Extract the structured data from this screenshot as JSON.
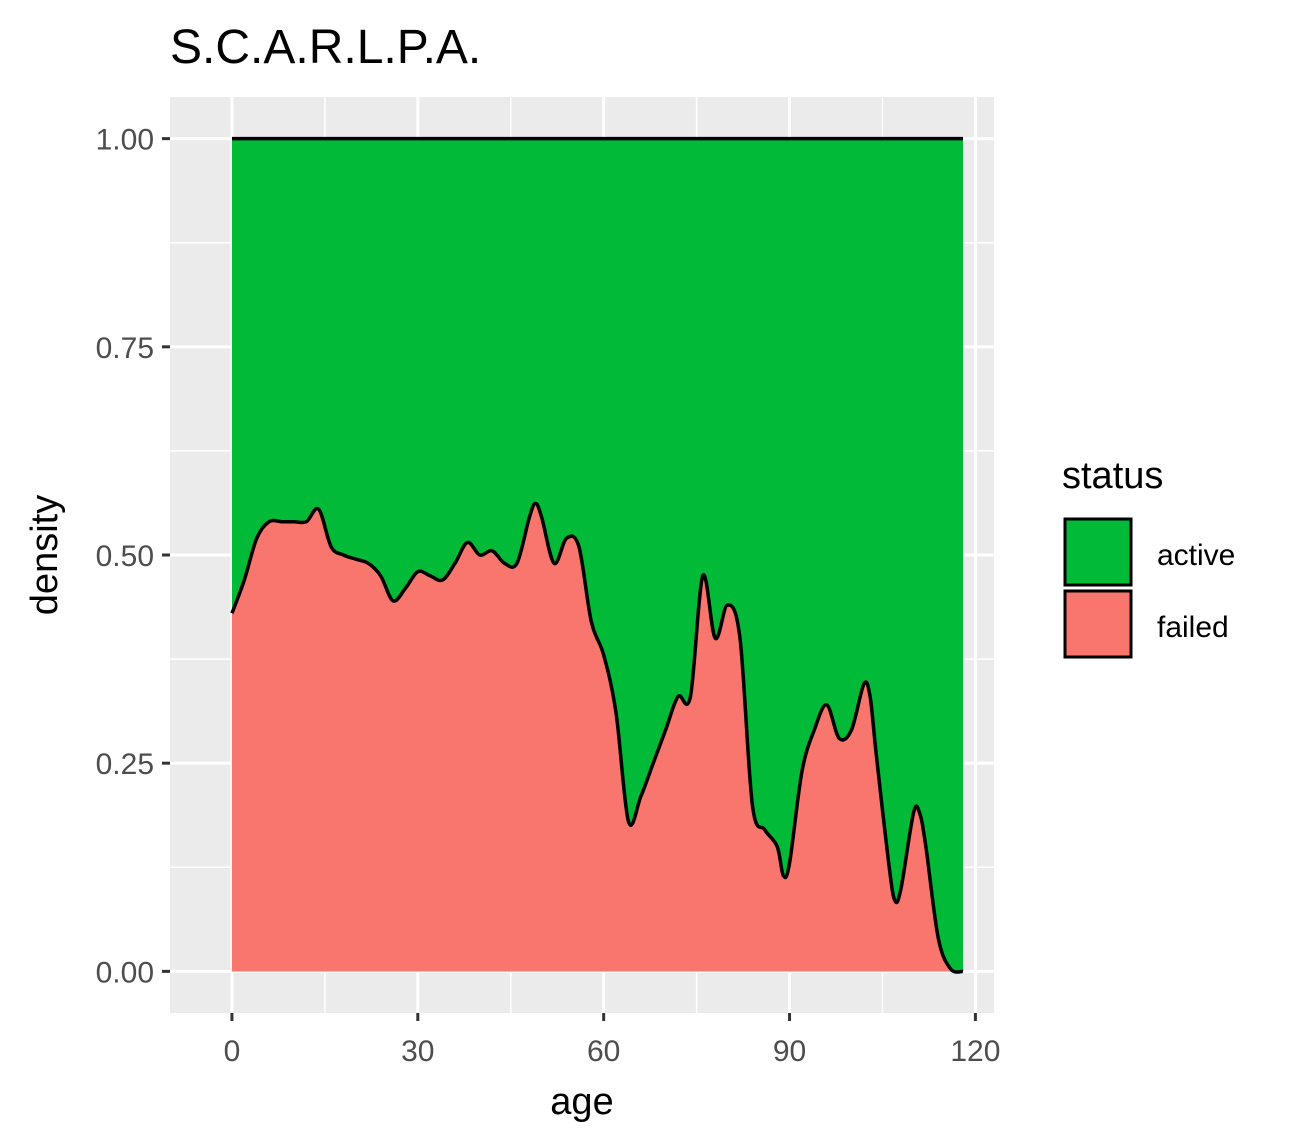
{
  "chart_data": {
    "type": "area",
    "subtype": "stacked density (position fill)",
    "title": "S.C.A.R.L.P.A.",
    "xlabel": "age",
    "ylabel": "density",
    "xlim": [
      -10,
      123
    ],
    "ylim": [
      -0.05,
      1.05
    ],
    "x_ticks": [
      0,
      30,
      60,
      90,
      120
    ],
    "x_tick_labels": [
      "0",
      "30",
      "60",
      "90",
      "120"
    ],
    "y_ticks": [
      0,
      0.25,
      0.5,
      0.75,
      1.0
    ],
    "y_tick_labels": [
      "0.00",
      "0.25",
      "0.50",
      "0.75",
      "1.00"
    ],
    "grid": true,
    "legend": {
      "title": "status",
      "position": "right",
      "entries": [
        {
          "label": "active",
          "color": "#00BA38"
        },
        {
          "label": "failed",
          "color": "#F8766D"
        }
      ]
    },
    "series": [
      {
        "name": "active",
        "color": "#00BA38",
        "role": "upper band (1 minus failed share)"
      },
      {
        "name": "failed",
        "color": "#F8766D",
        "role": "lower band (share)",
        "x": [
          0,
          2,
          4,
          6,
          8,
          10,
          12,
          14,
          16,
          18,
          20,
          22,
          24,
          26,
          28,
          30,
          32,
          34,
          36,
          38,
          40,
          42,
          44,
          46,
          48,
          49,
          50,
          52,
          54,
          56,
          58,
          60,
          62,
          64,
          66,
          68,
          70,
          72,
          74,
          76,
          78,
          80,
          82,
          84,
          86,
          88,
          89,
          90,
          92,
          94,
          96,
          98,
          100,
          102,
          103,
          104,
          106,
          107,
          108,
          110,
          111,
          112,
          114,
          116,
          118
        ],
        "values": [
          0.43,
          0.47,
          0.52,
          0.54,
          0.54,
          0.54,
          0.54,
          0.555,
          0.51,
          0.5,
          0.495,
          0.49,
          0.475,
          0.445,
          0.46,
          0.48,
          0.475,
          0.47,
          0.49,
          0.515,
          0.5,
          0.505,
          0.49,
          0.49,
          0.545,
          0.562,
          0.545,
          0.49,
          0.52,
          0.51,
          0.42,
          0.38,
          0.31,
          0.18,
          0.21,
          0.25,
          0.29,
          0.33,
          0.33,
          0.475,
          0.4,
          0.44,
          0.4,
          0.2,
          0.17,
          0.15,
          0.115,
          0.13,
          0.24,
          0.29,
          0.32,
          0.28,
          0.29,
          0.345,
          0.33,
          0.26,
          0.13,
          0.085,
          0.1,
          0.19,
          0.19,
          0.15,
          0.04,
          0.003,
          0.0
        ]
      }
    ]
  }
}
